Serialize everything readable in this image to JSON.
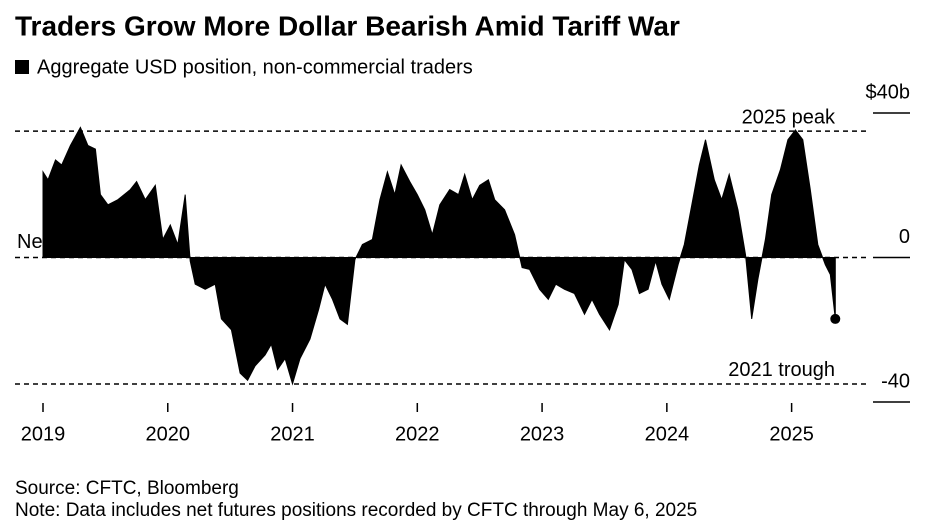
{
  "chart_data": {
    "type": "area",
    "title": "Traders Grow More Dollar Bearish Amid Tariff War",
    "legend_label": "Aggregate USD position, non-commercial traders",
    "source": "Source: CFTC, Bloomberg",
    "note": "Note: Data includes net futures positions recorded by CFTC through May 6, 2025",
    "color": "#000000",
    "xlim": [
      2019,
      2025.5
    ],
    "xticks": [
      2019,
      2020,
      2021,
      2022,
      2023,
      2024,
      2025
    ],
    "ylim": [
      -40,
      40
    ],
    "yticks": [
      {
        "value": -40,
        "label": "-40"
      },
      0,
      {
        "value": 40,
        "label": "$40b"
      }
    ],
    "annotations": [
      {
        "text": "2025 peak",
        "y": 35
      },
      {
        "text": "Neutral",
        "y": 0
      },
      {
        "text": "2021 trough",
        "y": -35
      }
    ],
    "x": [
      2019.0,
      2019.04,
      2019.1,
      2019.15,
      2019.22,
      2019.3,
      2019.36,
      2019.42,
      2019.46,
      2019.52,
      2019.6,
      2019.7,
      2019.75,
      2019.82,
      2019.9,
      2019.96,
      2020.02,
      2020.08,
      2020.14,
      2020.18,
      2020.22,
      2020.3,
      2020.38,
      2020.43,
      2020.51,
      2020.58,
      2020.64,
      2020.7,
      2020.78,
      2020.83,
      2020.88,
      2020.94,
      2021.0,
      2021.06,
      2021.14,
      2021.21,
      2021.26,
      2021.32,
      2021.38,
      2021.44,
      2021.5,
      2021.56,
      2021.64,
      2021.7,
      2021.76,
      2021.82,
      2021.87,
      2021.94,
      2022.0,
      2022.06,
      2022.12,
      2022.18,
      2022.26,
      2022.33,
      2022.38,
      2022.44,
      2022.5,
      2022.57,
      2022.62,
      2022.7,
      2022.78,
      2022.84,
      2022.9,
      2022.98,
      2023.05,
      2023.11,
      2023.18,
      2023.26,
      2023.34,
      2023.4,
      2023.46,
      2023.54,
      2023.61,
      2023.66,
      2023.72,
      2023.78,
      2023.85,
      2023.91,
      2023.96,
      2024.02,
      2024.09,
      2024.14,
      2024.2,
      2024.26,
      2024.31,
      2024.38,
      2024.44,
      2024.5,
      2024.57,
      2024.63,
      2024.68,
      2024.73,
      2024.79,
      2024.84,
      2024.91,
      2024.97,
      2025.03,
      2025.09,
      2025.15,
      2025.21,
      2025.27,
      2025.31,
      2025.35
    ],
    "values": [
      23.7,
      21.5,
      27,
      25.6,
      31,
      36,
      31,
      30,
      17.4,
      14.6,
      16,
      18.8,
      21,
      16,
      20,
      5,
      9,
      3.6,
      17.4,
      -1,
      -7.4,
      -8.8,
      -7.4,
      -17,
      -20,
      -32,
      -34,
      -30,
      -27,
      -24,
      -31,
      -28,
      -35,
      -28,
      -22.6,
      -14.3,
      -7.4,
      -11.6,
      -17,
      -18.5,
      -0.6,
      3.6,
      5,
      16,
      23.7,
      17.4,
      25.6,
      21,
      17.4,
      13.2,
      6.3,
      14.6,
      18.8,
      17.4,
      23,
      16,
      20,
      21.5,
      16,
      13.2,
      6.3,
      -2.8,
      -3.3,
      -8.8,
      -11.6,
      -7.4,
      -8.8,
      -10,
      -15.7,
      -11.6,
      -15.7,
      -20,
      -13,
      -0.6,
      -3.3,
      -10,
      -8.8,
      -1,
      -7.4,
      -11.6,
      -2,
      3.6,
      14.6,
      25.6,
      32.6,
      21.5,
      16,
      23,
      13.2,
      0.8,
      -17,
      -6,
      5,
      17.4,
      24.3,
      32.6,
      35.3,
      32.6,
      18.8,
      3.6,
      -2,
      -4.7,
      -17
    ]
  }
}
